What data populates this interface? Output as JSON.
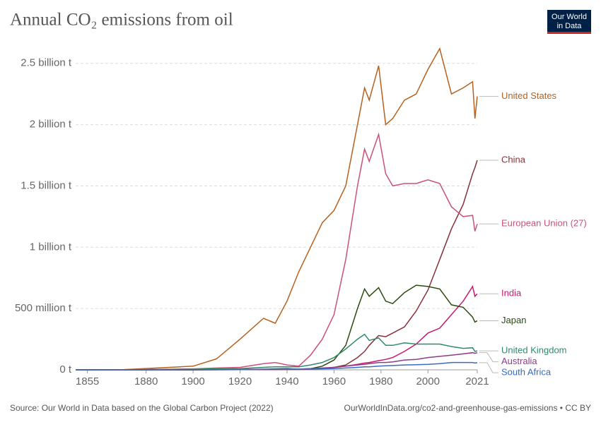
{
  "chart_data": {
    "type": "line",
    "title": "Annual CO₂ emissions from oil",
    "logo": [
      "Our World",
      "in Data"
    ],
    "source": "Source: Our World in Data based on the Global Carbon Project (2022)",
    "credit": "OurWorldInData.org/co2-and-greenhouse-gas-emissions • CC BY",
    "x": [
      1850,
      1870,
      1890,
      1900,
      1910,
      1920,
      1930,
      1935,
      1940,
      1945,
      1950,
      1955,
      1960,
      1965,
      1970,
      1973,
      1975,
      1979,
      1982,
      1985,
      1990,
      1995,
      2000,
      2005,
      2010,
      2015,
      2019,
      2020,
      2021
    ],
    "xlim": [
      1850,
      2021
    ],
    "xticks": [
      1855,
      1880,
      1900,
      1920,
      1940,
      1960,
      1980,
      2000,
      2021
    ],
    "ylim": [
      0,
      2700000000
    ],
    "yticks": [
      {
        "value": 0,
        "label": "0 t"
      },
      {
        "value": 500000000,
        "label": "500 million t"
      },
      {
        "value": 1000000000,
        "label": "1 billion t"
      },
      {
        "value": 1500000000,
        "label": "1.5 billion t"
      },
      {
        "value": 2000000000,
        "label": "2 billion t"
      },
      {
        "value": 2500000000,
        "label": "2.5 billion t"
      }
    ],
    "grid": true,
    "series": [
      {
        "name": "United States",
        "color": "#b5611f",
        "values": [
          0,
          2000000,
          20000000,
          30000000,
          90000000,
          250000000,
          420000000,
          380000000,
          560000000,
          800000000,
          1000000000,
          1200000000,
          1300000000,
          1500000000,
          2000000000,
          2300000000,
          2200000000,
          2480000000,
          2000000000,
          2050000000,
          2200000000,
          2250000000,
          2450000000,
          2620000000,
          2250000000,
          2300000000,
          2350000000,
          2050000000,
          2230000000
        ]
      },
      {
        "name": "China",
        "color": "#883039",
        "values": [
          0,
          0,
          0,
          0,
          0,
          1000000,
          2000000,
          3000000,
          3000000,
          3000000,
          5000000,
          10000000,
          20000000,
          40000000,
          100000000,
          150000000,
          200000000,
          280000000,
          270000000,
          300000000,
          350000000,
          480000000,
          650000000,
          900000000,
          1150000000,
          1350000000,
          1600000000,
          1650000000,
          1710000000
        ]
      },
      {
        "name": "European Union (27)",
        "color": "#c8527a",
        "values": [
          0,
          2000000,
          5000000,
          8000000,
          15000000,
          20000000,
          50000000,
          60000000,
          40000000,
          30000000,
          120000000,
          250000000,
          450000000,
          900000000,
          1500000000,
          1800000000,
          1700000000,
          1920000000,
          1600000000,
          1500000000,
          1520000000,
          1520000000,
          1550000000,
          1520000000,
          1330000000,
          1250000000,
          1260000000,
          1130000000,
          1190000000
        ]
      },
      {
        "name": "India",
        "color": "#c9196e",
        "values": [
          0,
          0,
          0,
          0,
          1000000,
          2000000,
          3000000,
          3000000,
          4000000,
          4000000,
          5000000,
          10000000,
          20000000,
          30000000,
          45000000,
          55000000,
          60000000,
          75000000,
          85000000,
          100000000,
          150000000,
          210000000,
          300000000,
          340000000,
          450000000,
          560000000,
          680000000,
          600000000,
          620000000
        ]
      },
      {
        "name": "Japan",
        "color": "#2c4a10",
        "values": [
          0,
          0,
          0,
          0,
          1000000,
          2000000,
          5000000,
          8000000,
          10000000,
          5000000,
          10000000,
          30000000,
          80000000,
          200000000,
          500000000,
          660000000,
          600000000,
          670000000,
          560000000,
          540000000,
          630000000,
          690000000,
          680000000,
          660000000,
          530000000,
          510000000,
          430000000,
          390000000,
          400000000
        ]
      },
      {
        "name": "United Kingdom",
        "color": "#2f8a6c",
        "values": [
          0,
          1000000,
          3000000,
          5000000,
          8000000,
          10000000,
          20000000,
          25000000,
          25000000,
          25000000,
          40000000,
          60000000,
          100000000,
          170000000,
          250000000,
          290000000,
          240000000,
          260000000,
          200000000,
          200000000,
          220000000,
          210000000,
          210000000,
          210000000,
          190000000,
          175000000,
          180000000,
          150000000,
          155000000
        ]
      },
      {
        "name": "Australia",
        "color": "#8c3c8c",
        "values": [
          0,
          0,
          1000000,
          1000000,
          2000000,
          3000000,
          5000000,
          5000000,
          6000000,
          6000000,
          10000000,
          15000000,
          20000000,
          30000000,
          40000000,
          45000000,
          50000000,
          60000000,
          60000000,
          65000000,
          80000000,
          85000000,
          100000000,
          110000000,
          120000000,
          130000000,
          140000000,
          135000000,
          140000000
        ]
      },
      {
        "name": "South Africa",
        "color": "#3a6bbf",
        "values": [
          0,
          0,
          0,
          1000000,
          1000000,
          2000000,
          3000000,
          4000000,
          5000000,
          5000000,
          5000000,
          8000000,
          10000000,
          15000000,
          20000000,
          24000000,
          25000000,
          30000000,
          33000000,
          35000000,
          40000000,
          42000000,
          45000000,
          50000000,
          60000000,
          60000000,
          60000000,
          55000000,
          58000000
        ]
      }
    ]
  }
}
